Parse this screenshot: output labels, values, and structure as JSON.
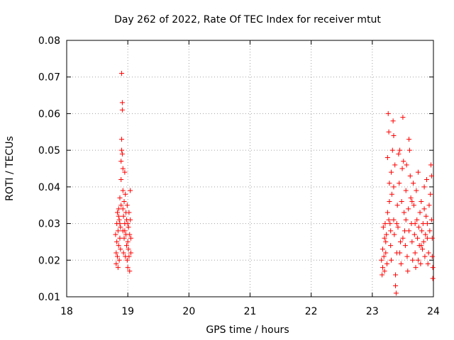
{
  "chart_data": {
    "type": "scatter",
    "title": "Day 262 of 2022, Rate Of TEC Index for receiver mtut",
    "xlabel": "GPS time / hours",
    "ylabel": "ROTI / TECUs",
    "xlim": [
      18,
      24
    ],
    "ylim": [
      0.01,
      0.08
    ],
    "x_ticks": [
      "18",
      "19",
      "20",
      "21",
      "22",
      "23",
      "24"
    ],
    "y_ticks": [
      "0.01",
      "0.02",
      "0.03",
      "0.04",
      "0.05",
      "0.06",
      "0.07",
      "0.08"
    ],
    "grid": true,
    "marker": "+",
    "color": "#ff0000",
    "series": [
      {
        "points": [
          [
            18.8,
            0.027
          ],
          [
            18.81,
            0.022
          ],
          [
            18.81,
            0.019
          ],
          [
            18.82,
            0.03
          ],
          [
            18.82,
            0.025
          ],
          [
            18.83,
            0.033
          ],
          [
            18.83,
            0.021
          ],
          [
            18.84,
            0.018
          ],
          [
            18.84,
            0.028
          ],
          [
            18.85,
            0.024
          ],
          [
            18.85,
            0.034
          ],
          [
            18.86,
            0.02
          ],
          [
            18.86,
            0.031
          ],
          [
            18.87,
            0.026
          ],
          [
            18.87,
            0.037
          ],
          [
            18.88,
            0.023
          ],
          [
            18.88,
            0.029
          ],
          [
            18.89,
            0.042
          ],
          [
            18.89,
            0.035
          ],
          [
            18.89,
            0.047
          ],
          [
            18.9,
            0.05
          ],
          [
            18.9,
            0.053
          ],
          [
            18.9,
            0.071
          ],
          [
            18.91,
            0.063
          ],
          [
            18.91,
            0.061
          ],
          [
            18.91,
            0.049
          ],
          [
            18.92,
            0.045
          ],
          [
            18.92,
            0.039
          ],
          [
            18.92,
            0.028
          ],
          [
            18.93,
            0.032
          ],
          [
            18.93,
            0.022
          ],
          [
            18.94,
            0.036
          ],
          [
            18.94,
            0.026
          ],
          [
            18.95,
            0.044
          ],
          [
            18.95,
            0.03
          ],
          [
            18.96,
            0.038
          ],
          [
            18.96,
            0.021
          ],
          [
            18.97,
            0.033
          ],
          [
            18.97,
            0.027
          ],
          [
            18.98,
            0.024
          ],
          [
            18.98,
            0.031
          ],
          [
            18.99,
            0.02
          ],
          [
            18.99,
            0.035
          ],
          [
            19.0,
            0.025
          ],
          [
            19.0,
            0.018
          ],
          [
            19.01,
            0.029
          ],
          [
            19.01,
            0.023
          ],
          [
            19.02,
            0.033
          ],
          [
            19.02,
            0.021
          ],
          [
            19.03,
            0.027
          ],
          [
            19.03,
            0.017
          ],
          [
            19.04,
            0.039
          ],
          [
            19.04,
            0.031
          ],
          [
            19.05,
            0.026
          ],
          [
            19.05,
            0.022
          ],
          [
            18.85,
            0.032
          ],
          [
            18.87,
            0.03
          ],
          [
            18.95,
            0.028
          ],
          [
            19.0,
            0.03
          ],
          [
            18.92,
            0.034
          ],
          [
            23.15,
            0.02
          ],
          [
            23.16,
            0.016
          ],
          [
            23.17,
            0.023
          ],
          [
            23.17,
            0.018
          ],
          [
            23.18,
            0.029
          ],
          [
            23.19,
            0.021
          ],
          [
            23.2,
            0.026
          ],
          [
            23.2,
            0.017
          ],
          [
            23.21,
            0.03
          ],
          [
            23.22,
            0.022
          ],
          [
            23.23,
            0.027
          ],
          [
            23.24,
            0.019
          ],
          [
            23.25,
            0.033
          ],
          [
            23.25,
            0.048
          ],
          [
            23.26,
            0.06
          ],
          [
            23.27,
            0.055
          ],
          [
            23.28,
            0.041
          ],
          [
            23.28,
            0.036
          ],
          [
            23.29,
            0.03
          ],
          [
            23.3,
            0.024
          ],
          [
            23.31,
            0.044
          ],
          [
            23.31,
            0.02
          ],
          [
            23.32,
            0.038
          ],
          [
            23.33,
            0.05
          ],
          [
            23.34,
            0.058
          ],
          [
            23.35,
            0.054
          ],
          [
            23.35,
            0.031
          ],
          [
            23.36,
            0.027
          ],
          [
            23.37,
            0.046
          ],
          [
            23.38,
            0.016
          ],
          [
            23.38,
            0.013
          ],
          [
            23.39,
            0.011
          ],
          [
            23.4,
            0.022
          ],
          [
            23.41,
            0.035
          ],
          [
            23.42,
            0.029
          ],
          [
            23.43,
            0.049
          ],
          [
            23.44,
            0.041
          ],
          [
            23.45,
            0.05
          ],
          [
            23.46,
            0.025
          ],
          [
            23.47,
            0.019
          ],
          [
            23.48,
            0.036
          ],
          [
            23.49,
            0.045
          ],
          [
            23.5,
            0.059
          ],
          [
            23.51,
            0.047
          ],
          [
            23.52,
            0.033
          ],
          [
            23.53,
            0.028
          ],
          [
            23.54,
            0.024
          ],
          [
            23.55,
            0.039
          ],
          [
            23.56,
            0.046
          ],
          [
            23.57,
            0.021
          ],
          [
            23.58,
            0.017
          ],
          [
            23.59,
            0.034
          ],
          [
            23.6,
            0.053
          ],
          [
            23.61,
            0.05
          ],
          [
            23.62,
            0.043
          ],
          [
            23.63,
            0.037
          ],
          [
            23.64,
            0.03
          ],
          [
            23.65,
            0.025
          ],
          [
            23.66,
            0.02
          ],
          [
            23.67,
            0.041
          ],
          [
            23.68,
            0.035
          ],
          [
            23.69,
            0.027
          ],
          [
            23.7,
            0.022
          ],
          [
            23.71,
            0.018
          ],
          [
            23.72,
            0.039
          ],
          [
            23.73,
            0.031
          ],
          [
            23.74,
            0.026
          ],
          [
            23.75,
            0.044
          ],
          [
            23.76,
            0.029
          ],
          [
            23.77,
            0.024
          ],
          [
            23.78,
            0.033
          ],
          [
            23.79,
            0.019
          ],
          [
            23.8,
            0.036
          ],
          [
            23.81,
            0.028
          ],
          [
            23.82,
            0.023
          ],
          [
            23.83,
            0.03
          ],
          [
            23.84,
            0.025
          ],
          [
            23.85,
            0.034
          ],
          [
            23.86,
            0.021
          ],
          [
            23.87,
            0.027
          ],
          [
            23.88,
            0.032
          ],
          [
            23.89,
            0.042
          ],
          [
            23.9,
            0.026
          ],
          [
            23.91,
            0.019
          ],
          [
            23.92,
            0.022
          ],
          [
            23.93,
            0.035
          ],
          [
            23.94,
            0.028
          ],
          [
            23.95,
            0.038
          ],
          [
            23.96,
            0.046
          ],
          [
            23.97,
            0.043
          ],
          [
            23.98,
            0.021
          ],
          [
            23.99,
            0.018
          ],
          [
            23.99,
            0.015
          ],
          [
            23.98,
            0.026
          ],
          [
            23.97,
            0.031
          ],
          [
            23.22,
            0.025
          ],
          [
            23.3,
            0.028
          ],
          [
            23.4,
            0.03
          ],
          [
            23.5,
            0.026
          ],
          [
            23.6,
            0.028
          ],
          [
            23.7,
            0.03
          ],
          [
            23.8,
            0.024
          ],
          [
            23.9,
            0.03
          ],
          [
            23.45,
            0.022
          ],
          [
            23.55,
            0.031
          ],
          [
            23.65,
            0.036
          ],
          [
            23.75,
            0.02
          ],
          [
            23.85,
            0.04
          ],
          [
            23.35,
            0.04
          ],
          [
            23.27,
            0.031
          ]
        ]
      }
    ]
  }
}
